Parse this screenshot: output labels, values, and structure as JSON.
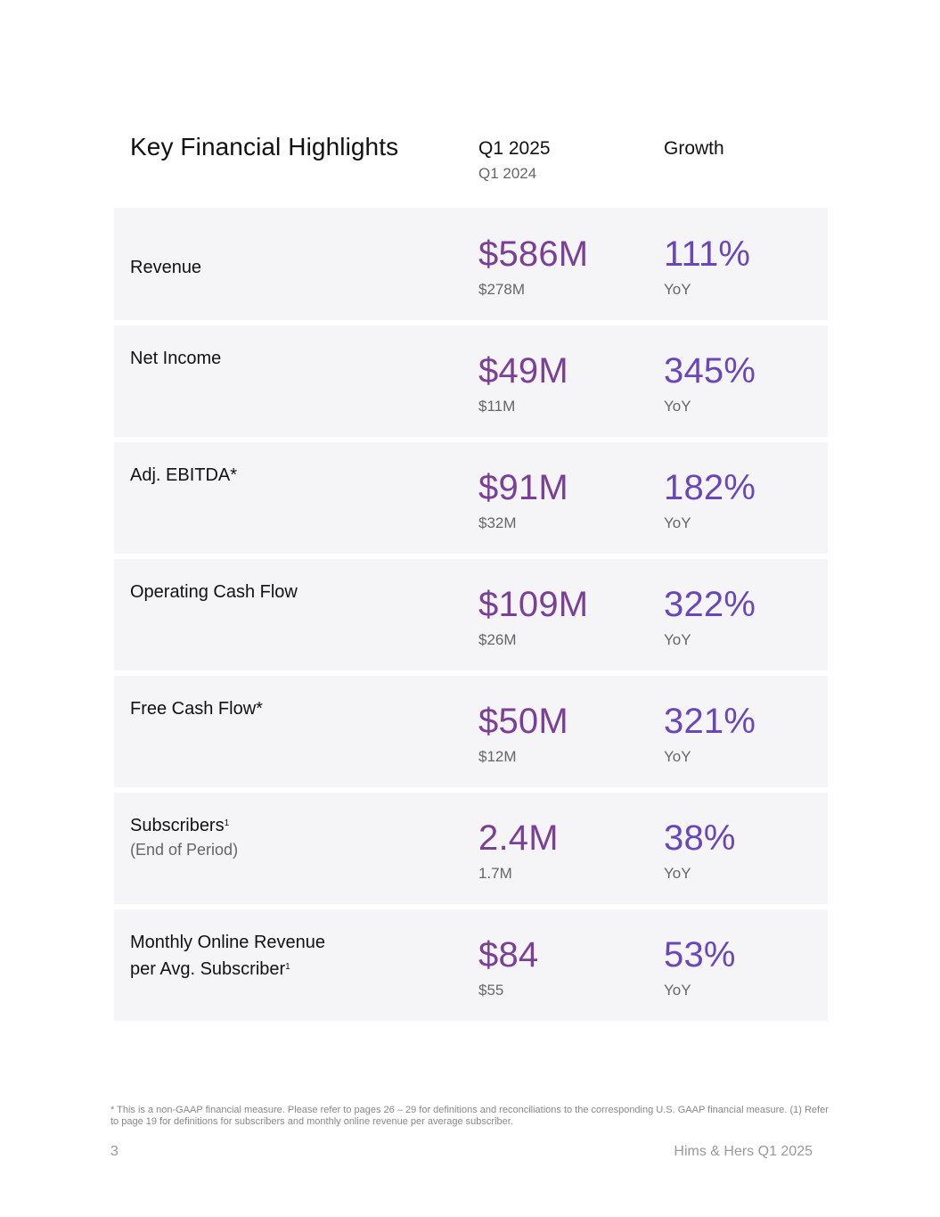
{
  "header": {
    "title": "Key Financial Highlights",
    "col_current": "Q1 2025",
    "col_prior": "Q1 2024",
    "col_growth": "Growth"
  },
  "rows": [
    {
      "metric": "Revenue",
      "note": "",
      "sup": "",
      "value": "$586M",
      "prior": "$278M",
      "growth": "111%",
      "growth_label": "YoY"
    },
    {
      "metric": "Net Income",
      "note": "",
      "sup": "",
      "value": "$49M",
      "prior": "$11M",
      "growth": "345%",
      "growth_label": "YoY"
    },
    {
      "metric": "Adj. EBITDA*",
      "note": "",
      "sup": "",
      "value": "$91M",
      "prior": "$32M",
      "growth": "182%",
      "growth_label": "YoY"
    },
    {
      "metric": "Operating Cash Flow",
      "note": "",
      "sup": "",
      "value": "$109M",
      "prior": "$26M",
      "growth": "322%",
      "growth_label": "YoY"
    },
    {
      "metric": "Free Cash Flow*",
      "note": "",
      "sup": "",
      "value": "$50M",
      "prior": "$12M",
      "growth": "321%",
      "growth_label": "YoY"
    },
    {
      "metric": "Subscribers",
      "note": "(End of Period)",
      "sup": "1",
      "value": "2.4M",
      "prior": "1.7M",
      "growth": "38%",
      "growth_label": "YoY"
    },
    {
      "metric_line1": "Monthly Online Revenue",
      "metric": "per Avg. Subscriber",
      "note": "",
      "sup": "1",
      "value": "$84",
      "prior": "$55",
      "growth": "53%",
      "growth_label": "YoY"
    }
  ],
  "footer": {
    "footnote": "* This is a non-GAAP financial measure. Please refer to pages 26 – 29 for definitions and reconciliations to the corresponding U.S. GAAP financial measure. (1) Refer to page 19 for definitions for subscribers and monthly online revenue per average subscriber.",
    "page_number": "3",
    "brand": "Hims & Hers Q1 2025"
  },
  "colors": {
    "value": "#7b3f98",
    "growth": "#6a47b8",
    "row_bg": "#f5f5f7"
  }
}
